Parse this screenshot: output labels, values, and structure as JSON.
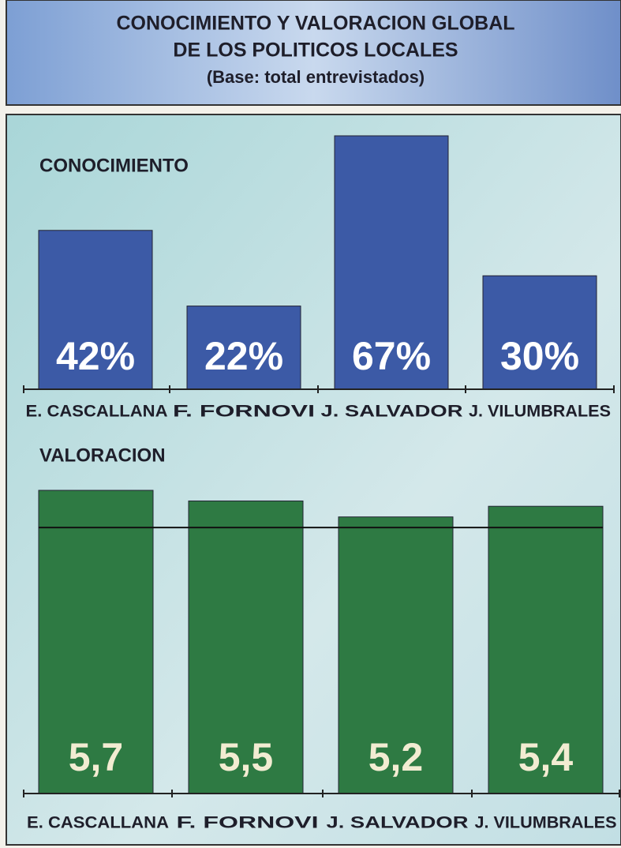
{
  "header": {
    "title_lines": [
      "CONOCIMIENTO Y VALORACION GLOBAL",
      "DE LOS POLITICOS LOCALES"
    ],
    "subtitle": "(Base: total entrevistados)"
  },
  "chart_data": [
    {
      "type": "bar",
      "title": "CONOCIMIENTO",
      "categories": [
        "E. CASCALLANA",
        "F. FORNOVI",
        "J. SALVADOR",
        "J. VILUMBRALES"
      ],
      "values": [
        42,
        22,
        67,
        30
      ],
      "value_labels": [
        "42%",
        "22%",
        "67%",
        "30%"
      ],
      "color": "#3c5aa6"
    },
    {
      "type": "bar",
      "title": "VALORACION",
      "categories": [
        "E. CASCALLANA",
        "F. FORNOVI",
        "J. SALVADOR",
        "J. VILUMBRALES"
      ],
      "values": [
        5.7,
        5.5,
        5.2,
        5.4
      ],
      "value_labels": [
        "5,7",
        "5,5",
        "5,2",
        "5,4"
      ],
      "color": "#2e7a43",
      "reference_line": 5
    }
  ]
}
